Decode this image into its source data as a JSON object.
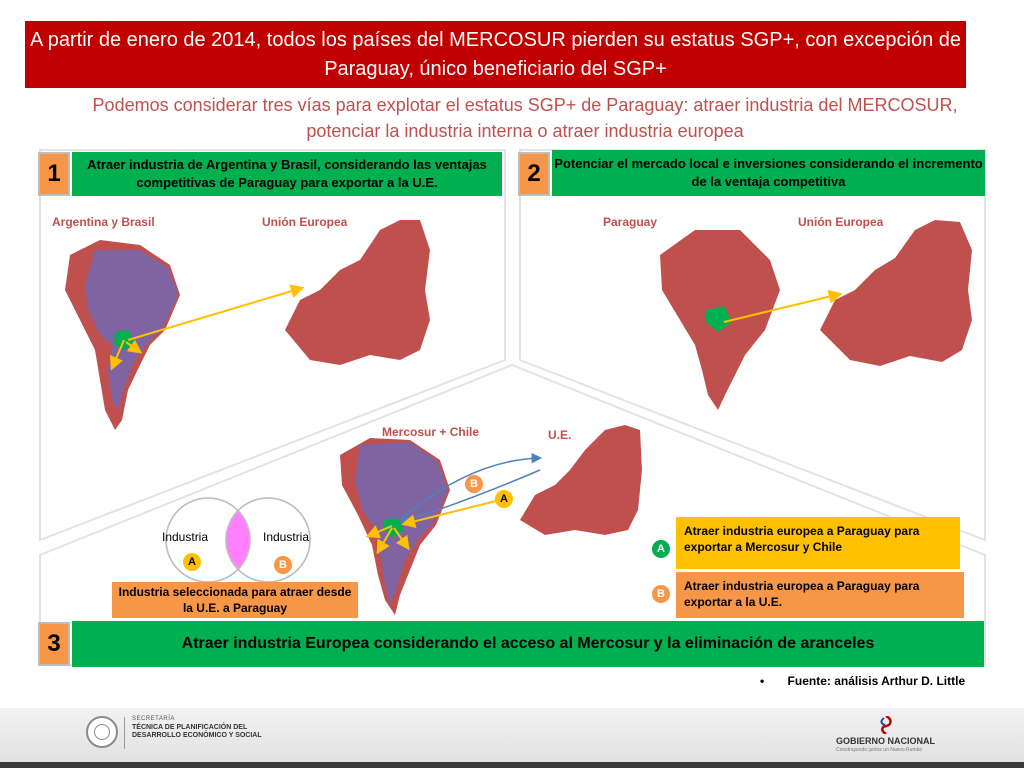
{
  "title": "A partir de enero de 2014, todos los países del MERCOSUR pierden su estatus SGP+, con excepción de Paraguay, único beneficiario del SGP+",
  "subtitle": "Podemos considerar tres vías para explotar el estatus SGP+ de Paraguay: atraer industria del MERCOSUR, potenciar la industria interna o atraer industria europea",
  "panel1": {
    "number": "1",
    "text": "Atraer industria de Argentina y Brasil, considerando las ventajas competitivas de Paraguay para exportar a la U.E.",
    "label_left": "Argentina y Brasil",
    "label_right": "Unión Europea"
  },
  "panel2": {
    "number": "2",
    "text": "Potenciar el mercado local e inversiones considerando el incremento de la ventaja competitiva",
    "label_left": "Paraguay",
    "label_right": "Unión Europea"
  },
  "panel3": {
    "number": "3",
    "text": "Atraer industria Europea considerando el acceso al Mercosur y la eliminación de aranceles",
    "label_left": "Mercosur + Chile",
    "label_right": "U.E.",
    "venn_left": "Industria",
    "venn_right": "Industria",
    "badge_a": "A",
    "badge_b": "B",
    "selected_text": "Industria seleccionada para atraer desde la U.E. a Paraguay",
    "option_a": "Atraer industria europea a Paraguay para exportar a Mercosur y Chile",
    "option_b": "Atraer industria europea a Paraguay para exportar a la U.E."
  },
  "source": "Fuente: análisis Arthur D. Little",
  "source_bullet": "•",
  "footer": {
    "secretaria_small": "SECRETARÍA",
    "secretaria_name": "TÉCNICA DE PLANIFICACIÓN DEL DESARROLLO ECONÓMICO Y SOCIAL",
    "gobierno": "GOBIERNO NACIONAL",
    "gobierno_tagline": "Construyendo juntos un Nuevo Rumbo"
  },
  "colors": {
    "title_bg": "#c00000",
    "subtitle": "#c0504d",
    "green": "#00b050",
    "orange": "#f79646",
    "yellow": "#ffc000",
    "map_red": "#c0504d",
    "map_purple": "#8064a2"
  }
}
